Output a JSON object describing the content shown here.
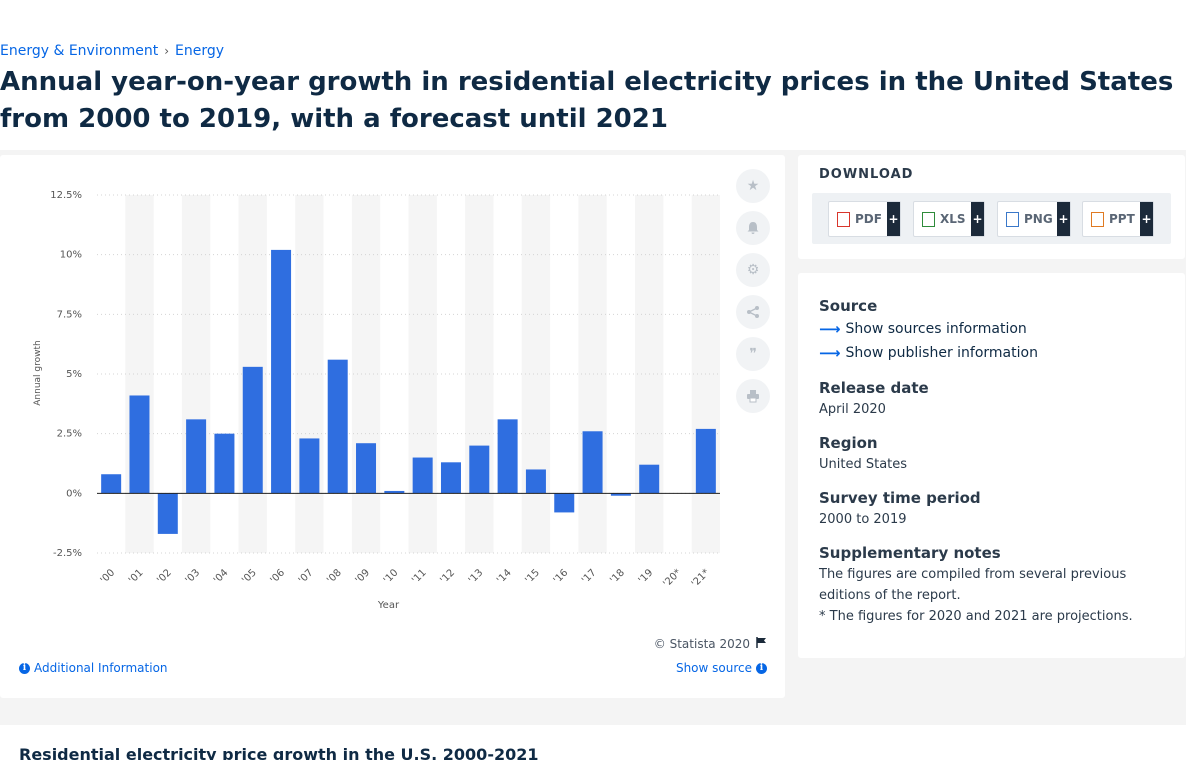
{
  "breadcrumb": {
    "items": [
      "Energy & Environment",
      "Energy"
    ],
    "separator": "›"
  },
  "page_title": "Annual year-on-year growth in residential electricity prices in the United States from 2000 to 2019, with a forecast until 2021",
  "chart_data": {
    "type": "bar",
    "categories": [
      "'00",
      "'01",
      "'02",
      "'03",
      "'04",
      "'05",
      "'06",
      "'07",
      "'08",
      "'09",
      "'10",
      "'11",
      "'12",
      "'13",
      "'14",
      "'15",
      "'16",
      "'17",
      "'18",
      "'19",
      "'20*",
      "'21*"
    ],
    "series": [
      {
        "values": [
          0.8,
          4.1,
          -1.7,
          3.1,
          2.5,
          5.3,
          10.2,
          2.3,
          5.6,
          2.1,
          0.1,
          1.5,
          1.3,
          2.0,
          3.1,
          1.0,
          -0.8,
          2.6,
          -0.1,
          1.2,
          0.0,
          2.7
        ]
      }
    ],
    "xlabel": "Year",
    "ylabel": "Annual growth",
    "ylim": [
      -2.5,
      12.5
    ],
    "yticks": [
      "-2.5%",
      "0%",
      "2.5%",
      "5%",
      "7.5%",
      "10%",
      "12.5%"
    ],
    "bar_color": "#2f6ee0",
    "grid": "alternating column bands"
  },
  "chart_footer": {
    "copyright": "© Statista 2020",
    "additional_info": "Additional Information",
    "show_source": "Show source"
  },
  "toolbar": {
    "icons": [
      "star-icon",
      "bell-icon",
      "gear-icon",
      "share-icon",
      "quote-icon",
      "print-icon"
    ]
  },
  "download": {
    "title": "DOWNLOAD",
    "buttons": [
      {
        "label": "PDF",
        "color": "#d9362c"
      },
      {
        "label": "XLS",
        "color": "#2e8b3a"
      },
      {
        "label": "PNG",
        "color": "#3a78c9"
      },
      {
        "label": "PPT",
        "color": "#e07a22"
      }
    ],
    "plus": "+"
  },
  "meta": {
    "source_label": "Source",
    "show_sources": "Show sources information",
    "show_publisher": "Show publisher information",
    "release_label": "Release date",
    "release_value": "April 2020",
    "region_label": "Region",
    "region_value": "United States",
    "period_label": "Survey time period",
    "period_value": "2000 to 2019",
    "notes_label": "Supplementary notes",
    "notes_line1": "The figures are compiled from several previous editions of the report.",
    "notes_line2": "* The figures for 2020 and 2021 are projections."
  },
  "bottom": {
    "title": "Residential electricity price growth in the U.S. 2000-2021"
  }
}
